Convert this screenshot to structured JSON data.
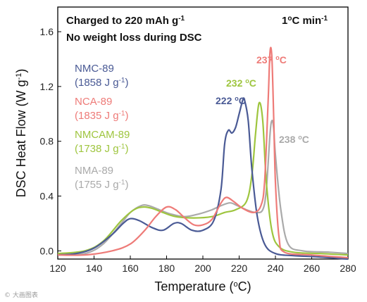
{
  "chart_data": {
    "type": "line",
    "xlabel": "Temperature (°C)",
    "ylabel": "DSC Heat Flow (W g-1)",
    "xlim": [
      120,
      280
    ],
    "ylim": [
      -0.06,
      1.78
    ],
    "x_ticks": [
      120,
      140,
      160,
      180,
      200,
      220,
      240,
      260,
      280
    ],
    "y_ticks": [
      0.0,
      0.4,
      0.8,
      1.2,
      1.6
    ],
    "y_tick_labels": [
      "0.0",
      "0.4",
      "0.8",
      "1.2",
      "1.6"
    ],
    "annotations": {
      "condition_line1": "Charged to 220 mAh g-1",
      "condition_line2": "No weight loss during DSC",
      "rate": "1°C min-1"
    },
    "series": [
      {
        "name": "NMC-89",
        "legend_line2": "(1858 J g-1)",
        "color": "#4a5a95",
        "peak_label": "222 °C",
        "points": [
          [
            120,
            -0.03
          ],
          [
            130,
            -0.02
          ],
          [
            140,
            0.02
          ],
          [
            150,
            0.12
          ],
          [
            156,
            0.2
          ],
          [
            160,
            0.235
          ],
          [
            165,
            0.22
          ],
          [
            172,
            0.17
          ],
          [
            178,
            0.15
          ],
          [
            184,
            0.2
          ],
          [
            188,
            0.2
          ],
          [
            194,
            0.15
          ],
          [
            200,
            0.15
          ],
          [
            206,
            0.22
          ],
          [
            210,
            0.45
          ],
          [
            212,
            0.78
          ],
          [
            214,
            0.88
          ],
          [
            216,
            0.86
          ],
          [
            218,
            0.9
          ],
          [
            220,
            1.0
          ],
          [
            222,
            1.1
          ],
          [
            223,
            1.1
          ],
          [
            225,
            0.95
          ],
          [
            227,
            0.6
          ],
          [
            230,
            0.25
          ],
          [
            234,
            0.05
          ],
          [
            240,
            -0.02
          ],
          [
            250,
            -0.035
          ],
          [
            265,
            -0.045
          ],
          [
            280,
            -0.06
          ]
        ]
      },
      {
        "name": "NCA-89",
        "legend_line2": "(1835 J g-1)",
        "color": "#ee7b78",
        "peak_label": "237 °C",
        "points": [
          [
            120,
            -0.03
          ],
          [
            135,
            -0.03
          ],
          [
            150,
            0.0
          ],
          [
            160,
            0.05
          ],
          [
            168,
            0.15
          ],
          [
            174,
            0.25
          ],
          [
            180,
            0.32
          ],
          [
            185,
            0.3
          ],
          [
            190,
            0.24
          ],
          [
            195,
            0.19
          ],
          [
            200,
            0.19
          ],
          [
            205,
            0.23
          ],
          [
            210,
            0.35
          ],
          [
            213,
            0.39
          ],
          [
            217,
            0.36
          ],
          [
            222,
            0.31
          ],
          [
            228,
            0.28
          ],
          [
            232,
            0.33
          ],
          [
            234,
            0.5
          ],
          [
            236,
            1.1
          ],
          [
            237,
            1.45
          ],
          [
            238,
            1.42
          ],
          [
            239,
            1.0
          ],
          [
            240,
            0.5
          ],
          [
            242,
            0.1
          ],
          [
            245,
            -0.01
          ],
          [
            260,
            -0.03
          ],
          [
            280,
            -0.05
          ]
        ]
      },
      {
        "name": "NMCAM-89",
        "legend_line2": "(1738 J g-1)",
        "color": "#9ec53e",
        "peak_label": "232 °C",
        "points": [
          [
            120,
            -0.02
          ],
          [
            135,
            0.0
          ],
          [
            145,
            0.07
          ],
          [
            155,
            0.22
          ],
          [
            162,
            0.3
          ],
          [
            167,
            0.32
          ],
          [
            172,
            0.31
          ],
          [
            178,
            0.28
          ],
          [
            185,
            0.25
          ],
          [
            195,
            0.24
          ],
          [
            205,
            0.25
          ],
          [
            212,
            0.28
          ],
          [
            218,
            0.3
          ],
          [
            224,
            0.36
          ],
          [
            227,
            0.55
          ],
          [
            229,
            0.85
          ],
          [
            231,
            1.08
          ],
          [
            233,
            0.95
          ],
          [
            235,
            0.5
          ],
          [
            238,
            0.15
          ],
          [
            242,
            0.03
          ],
          [
            250,
            -0.01
          ],
          [
            265,
            -0.02
          ],
          [
            280,
            -0.03
          ]
        ]
      },
      {
        "name": "NMA-89",
        "legend_line2": "(1755 J g-1)",
        "color": "#aaaaaa",
        "peak_label": "238 °C",
        "points": [
          [
            120,
            -0.03
          ],
          [
            135,
            -0.02
          ],
          [
            145,
            0.05
          ],
          [
            155,
            0.2
          ],
          [
            160,
            0.28
          ],
          [
            166,
            0.33
          ],
          [
            170,
            0.33
          ],
          [
            176,
            0.3
          ],
          [
            182,
            0.27
          ],
          [
            190,
            0.25
          ],
          [
            198,
            0.27
          ],
          [
            205,
            0.3
          ],
          [
            210,
            0.33
          ],
          [
            215,
            0.35
          ],
          [
            219,
            0.33
          ],
          [
            224,
            0.3
          ],
          [
            229,
            0.28
          ],
          [
            233,
            0.3
          ],
          [
            235,
            0.45
          ],
          [
            237,
            0.85
          ],
          [
            238,
            0.95
          ],
          [
            239,
            0.9
          ],
          [
            240,
            0.7
          ],
          [
            243,
            0.3
          ],
          [
            247,
            0.05
          ],
          [
            255,
            0.0
          ],
          [
            270,
            -0.01
          ],
          [
            280,
            -0.02
          ]
        ]
      }
    ]
  },
  "watermark": "© 大画图表"
}
